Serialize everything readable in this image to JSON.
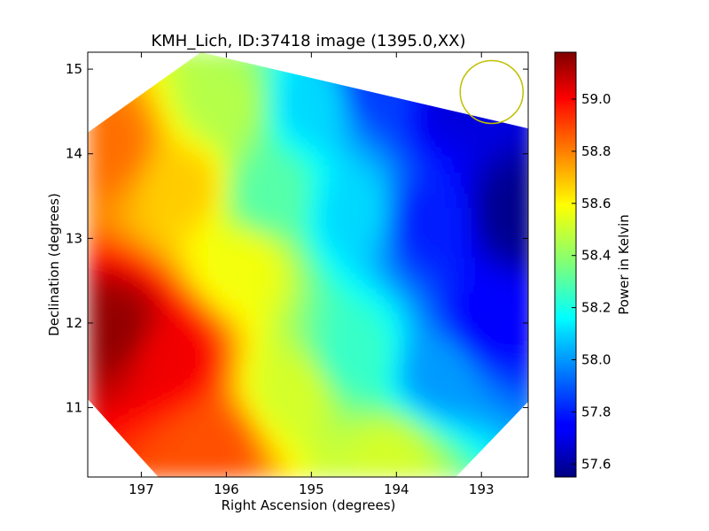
{
  "chart_data": {
    "type": "heatmap",
    "title": "KMH_Lich, ID:37418 image (1395.0,XX)",
    "xlabel": "Right Ascension (degrees)",
    "ylabel": "Declination (degrees)",
    "xlim": [
      197.63,
      192.45
    ],
    "ylim": [
      10.18,
      15.2
    ],
    "x_inverted": true,
    "xticks": [
      197,
      196,
      195,
      194,
      193
    ],
    "xtick_labels": [
      "197",
      "196",
      "195",
      "194",
      "193"
    ],
    "yticks": [
      11,
      12,
      13,
      14,
      15
    ],
    "ytick_labels": [
      "11",
      "12",
      "13",
      "14",
      "15"
    ],
    "grid": false,
    "colormap": "jet",
    "colorbar": {
      "label": "Power in Kelvin",
      "min": 57.55,
      "max": 59.18,
      "ticks": [
        57.6,
        57.8,
        58.0,
        58.2,
        58.4,
        58.6,
        58.8,
        59.0
      ],
      "tick_labels": [
        "57.6",
        "57.8",
        "58.0",
        "58.2",
        "58.4",
        "58.6",
        "58.8",
        "59.0"
      ]
    },
    "field_footprint": "octagon",
    "field_corners_ra_dec": [
      [
        196.3,
        15.2
      ],
      [
        192.45,
        14.3
      ],
      [
        192.45,
        11.07
      ],
      [
        193.3,
        10.18
      ],
      [
        196.8,
        10.18
      ],
      [
        197.63,
        11.1
      ],
      [
        197.63,
        14.25
      ]
    ],
    "value_samples_ra_dec_k": [
      [
        197.3,
        11.9,
        59.15
      ],
      [
        196.7,
        11.6,
        59.0
      ],
      [
        196.2,
        10.5,
        58.85
      ],
      [
        197.4,
        14.1,
        58.8
      ],
      [
        196.5,
        13.6,
        58.65
      ],
      [
        195.8,
        12.7,
        58.55
      ],
      [
        195.2,
        11.2,
        58.5
      ],
      [
        194.1,
        10.4,
        58.5
      ],
      [
        196.0,
        14.6,
        58.45
      ],
      [
        195.5,
        13.5,
        58.3
      ],
      [
        194.5,
        11.6,
        58.25
      ],
      [
        195.0,
        14.6,
        58.1
      ],
      [
        194.5,
        13.3,
        58.1
      ],
      [
        193.5,
        11.4,
        58.0
      ],
      [
        194.2,
        14.8,
        57.85
      ],
      [
        193.6,
        13.2,
        57.8
      ],
      [
        192.9,
        12.0,
        57.75
      ],
      [
        193.3,
        14.6,
        57.7
      ],
      [
        192.6,
        13.3,
        57.57
      ]
    ],
    "beam_marker": {
      "ra": 192.88,
      "dec": 14.73,
      "radius_deg": 0.37,
      "color": "#bfbf00"
    },
    "colors": {
      "frame": "#000000",
      "beam": "#bfbf00"
    }
  }
}
